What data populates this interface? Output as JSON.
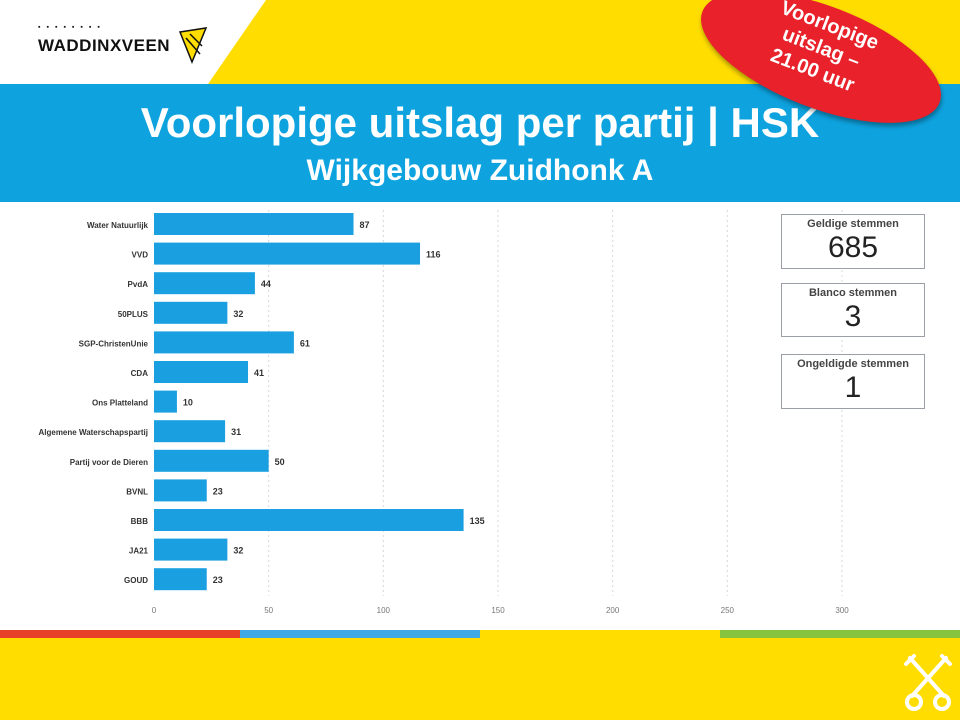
{
  "header": {
    "logo_text": "WADDINXVEEN",
    "title": "Voorlopige uitslag per partij | HSK",
    "subtitle": "Wijkgebouw Zuidhonk A"
  },
  "badge": {
    "lines": [
      "Voorlopige",
      "uitslag –",
      "21.00 uur"
    ]
  },
  "stats": [
    {
      "label": "Geldige stemmen",
      "value": "685"
    },
    {
      "label": "Blanco stemmen",
      "value": "3"
    },
    {
      "label": "Ongeldigde stemmen",
      "value": "1"
    }
  ],
  "colors": {
    "bar": "#1a9fe0",
    "band": "#0ea3df",
    "background": "#ffdd00",
    "badge": "#e8212a",
    "strip": [
      "#e8412a",
      "#3fa9e6",
      "#ffdd00",
      "#86c440"
    ]
  },
  "chart_data": {
    "type": "bar",
    "orientation": "horizontal",
    "categories": [
      "Water Natuurlijk",
      "VVD",
      "PvdA",
      "50PLUS",
      "SGP-ChristenUnie",
      "CDA",
      "Ons Platteland",
      "Algemene Waterschapspartij",
      "Partij voor de Dieren",
      "BVNL",
      "BBB",
      "JA21",
      "GOUD"
    ],
    "values": [
      87,
      116,
      44,
      32,
      61,
      41,
      10,
      31,
      50,
      23,
      135,
      32,
      23
    ],
    "xlim": [
      0,
      300
    ],
    "xticks": [
      0,
      50,
      100,
      150,
      200,
      250,
      300
    ],
    "grid": "vertical-dashed",
    "data_labels": true
  }
}
